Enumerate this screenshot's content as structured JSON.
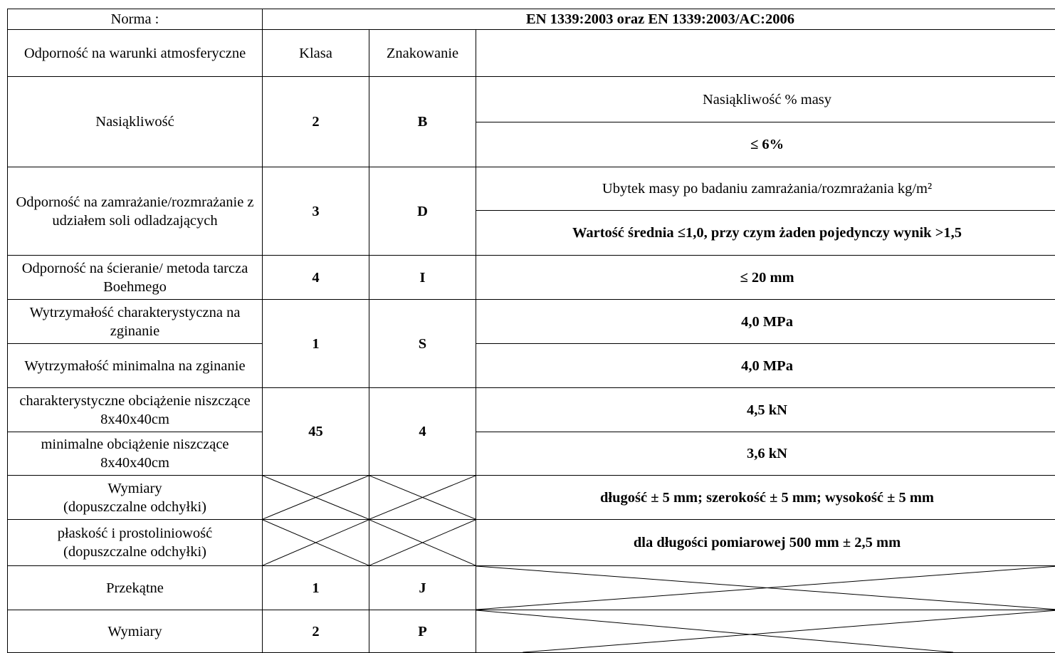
{
  "header": {
    "norma_label": "Norma :",
    "norma_value": "EN 1339:2003 oraz EN 1339:2003/AC:2006"
  },
  "columns": {
    "property": "Odporność na warunki atmosferyczne",
    "klasa": "Klasa",
    "znakowanie": "Znakowanie",
    "requirement": ""
  },
  "rows": {
    "nasiakliwosc": {
      "label": "Nasiąkliwość",
      "klasa": "2",
      "znak": "B",
      "req_title": "Nasiąkliwość % masy",
      "req_value": "≤ 6%"
    },
    "zamrazanie": {
      "label": "Odporność na zamrażanie/rozmrażanie z udziałem soli odladzających",
      "klasa": "3",
      "znak": "D",
      "req_title": "Ubytek masy po badaniu zamrażania/rozmrażania kg/m²",
      "req_value": "Wartość średnia ≤1,0, przy czym żaden pojedynczy wynik >1,5"
    },
    "scieranie": {
      "label": "Odporność na ścieranie/ metoda tarcza Boehmego",
      "klasa": "4",
      "znak": "I",
      "req_value": "≤ 20 mm"
    },
    "zginanie": {
      "label_char": "Wytrzymałość  charakterystyczna na zginanie",
      "label_min": "Wytrzymałość  minimalna na zginanie",
      "klasa": "1",
      "znak": "S",
      "req_char": "4,0 MPa",
      "req_min": "4,0 MPa"
    },
    "obciazenie": {
      "label_char": "charakterystyczne obciążenie niszczące 8x40x40cm",
      "label_min": "minimalne obciążenie niszczące 8x40x40cm",
      "klasa": "45",
      "znak": "4",
      "req_char": "4,5 kN",
      "req_min": "3,6 kN"
    },
    "wymiary_odchylki": {
      "label_line1": "Wymiary",
      "label_line2": "(dopuszczalne odchyłki)",
      "req_value": "długość ± 5 mm; szerokość ± 5 mm; wysokość ± 5 mm"
    },
    "plaskosc": {
      "label_line1": "płaskość i prostoliniowość",
      "label_line2": "(dopuszczalne odchyłki)",
      "req_value": "dla długości pomiarowej 500 mm ± 2,5 mm"
    },
    "przekatne": {
      "label": "Przekątne",
      "klasa": "1",
      "znak": "J"
    },
    "wymiary": {
      "label": "Wymiary",
      "klasa": "2",
      "znak": "P"
    }
  }
}
